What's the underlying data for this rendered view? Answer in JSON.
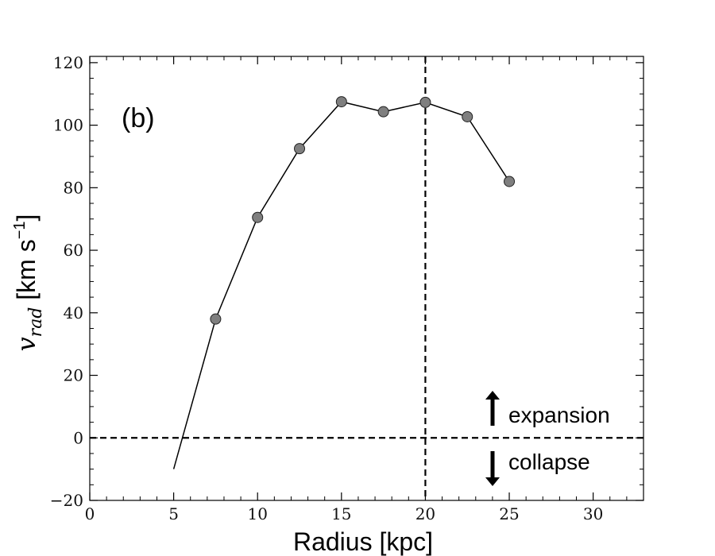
{
  "chart_data": {
    "type": "line",
    "panel_label": "(b)",
    "xlabel": "Radius [kpc]",
    "ylabel": {
      "variable": "v",
      "subscript": "rad",
      "units_prefix": " [km s",
      "units_exponent": "−1",
      "units_suffix": "]"
    },
    "xlim": [
      0,
      33
    ],
    "ylim": [
      -20,
      122
    ],
    "xticks": [
      0,
      5,
      10,
      15,
      20,
      25,
      30
    ],
    "yticks": [
      -20,
      0,
      20,
      40,
      60,
      80,
      100,
      120
    ],
    "xtick_labels": [
      "0",
      "5",
      "10",
      "15",
      "20",
      "25",
      "30"
    ],
    "ytick_labels": [
      "−20",
      "0",
      "20",
      "40",
      "60",
      "80",
      "100",
      "120"
    ],
    "x_minor_step": 1,
    "y_minor_step": 5,
    "grid": false,
    "series": [
      {
        "x": [
          5,
          7.5,
          10,
          12.5,
          15,
          17.5,
          20,
          22.5,
          25
        ],
        "y": [
          -10,
          38,
          70.5,
          92.5,
          107.5,
          104.3,
          107.3,
          102.7,
          82
        ],
        "marker_from_index": 1,
        "line_color": "#000000",
        "marker_color": "#7f7f7f"
      }
    ],
    "reference_lines": [
      {
        "orientation": "horizontal",
        "value": 0,
        "style": "dashed"
      },
      {
        "orientation": "vertical",
        "value": 20,
        "style": "dashed"
      }
    ],
    "annotations": {
      "expansion": "expansion",
      "collapse": "collapse"
    }
  }
}
